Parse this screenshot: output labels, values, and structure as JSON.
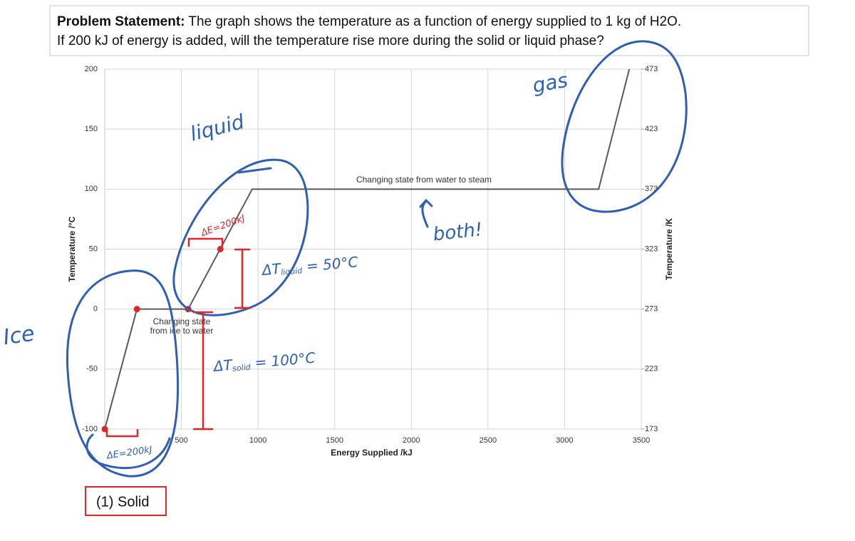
{
  "problem": {
    "label": "Problem Statement:",
    "line1": "The graph shows the temperature as a function of energy supplied to 1 kg of H2O.",
    "line2": "If 200 kJ of energy is added, will the temperature rise more during the solid or liquid phase?"
  },
  "chart_data": {
    "type": "line",
    "x": [
      0,
      210,
      544,
      962,
      3222,
      3422
    ],
    "series": [
      {
        "color": "#5a5a5a",
        "values": [
          -100,
          0,
          0,
          100,
          100,
          200
        ]
      }
    ],
    "xlim": [
      0,
      3500
    ],
    "xticks": [
      500,
      1000,
      1500,
      2000,
      2500,
      3000,
      3500
    ],
    "ylim": [
      -100,
      200
    ],
    "yticks": [
      -100,
      -50,
      0,
      50,
      100,
      150,
      200
    ],
    "y2lim": [
      173,
      473
    ],
    "y2ticks": [
      173,
      223,
      273,
      323,
      373,
      423,
      473
    ],
    "xlabel": "Energy Supplied /kJ",
    "ylabel": "Temperature /°C",
    "y2label": "Temperature /K",
    "grid": true,
    "annotations": [
      "Changing state from water to steam",
      "Changing state",
      "from ice to water"
    ],
    "highlight_points": {
      "color": "#e0262b",
      "x": [
        0,
        210,
        544,
        754
      ],
      "y": [
        -100,
        0,
        0,
        50
      ]
    }
  },
  "handwritten": {
    "liquid": "liquid",
    "gas": "gas",
    "ice": "Ice",
    "both": "both!",
    "de_liquid": "ΔE=200kJ",
    "de_solid": "ΔE=200kJ",
    "dt_liquid": {
      "main": "ΔT",
      "sub": "liquid",
      "rest": " = 50°C"
    },
    "dt_solid": {
      "main": "ΔT",
      "sub": "solid",
      "rest": " = 100°C"
    }
  },
  "answer": "(1) Solid"
}
